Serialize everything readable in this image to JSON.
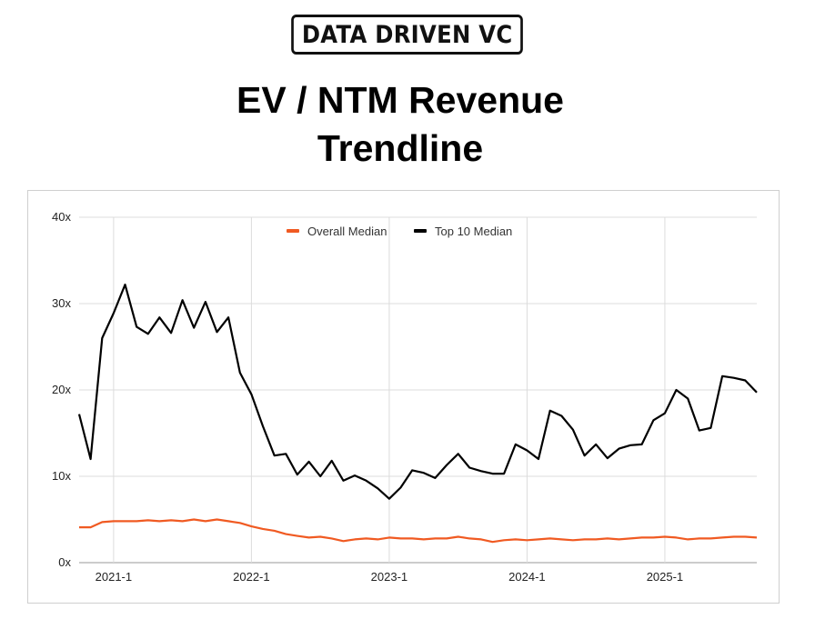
{
  "logo": {
    "text": "DATA DRIVEN VC"
  },
  "title": {
    "line1": "EV / NTM Revenue",
    "line2": "Trendline"
  },
  "colors": {
    "overall": "#f05a22",
    "top10": "#000000",
    "grid": "#dcdcdc"
  },
  "chart_data": {
    "type": "line",
    "title": "EV / NTM Revenue Trendline",
    "xlabel": "",
    "ylabel": "",
    "ylim": [
      0,
      40
    ],
    "y_ticks": [
      "0x",
      "10x",
      "20x",
      "30x",
      "40x"
    ],
    "x_ticks": [
      "2021-1",
      "2022-1",
      "2023-1",
      "2024-1",
      "2025-1"
    ],
    "grid": true,
    "legend_position": "top-center",
    "x": [
      2020.75,
      2020.833,
      2020.917,
      2021.0,
      2021.083,
      2021.167,
      2021.25,
      2021.333,
      2021.417,
      2021.5,
      2021.583,
      2021.667,
      2021.75,
      2021.833,
      2021.917,
      2022.0,
      2022.083,
      2022.167,
      2022.25,
      2022.333,
      2022.417,
      2022.5,
      2022.583,
      2022.667,
      2022.75,
      2022.833,
      2022.917,
      2023.0,
      2023.083,
      2023.167,
      2023.25,
      2023.333,
      2023.417,
      2023.5,
      2023.583,
      2023.667,
      2023.75,
      2023.833,
      2023.917,
      2024.0,
      2024.083,
      2024.167,
      2024.25,
      2024.333,
      2024.417,
      2024.5,
      2024.583,
      2024.667,
      2024.75,
      2024.833,
      2024.917,
      2025.0,
      2025.083,
      2025.167,
      2025.25,
      2025.333,
      2025.417,
      2025.5,
      2025.583,
      2025.667
    ],
    "series": [
      {
        "name": "Overall Median",
        "color": "#f05a22",
        "values": [
          4.1,
          4.1,
          4.7,
          4.8,
          4.8,
          4.8,
          4.9,
          4.8,
          4.9,
          4.8,
          5.0,
          4.8,
          5.0,
          4.8,
          4.6,
          4.2,
          3.9,
          3.7,
          3.3,
          3.1,
          2.9,
          3.0,
          2.8,
          2.5,
          2.7,
          2.8,
          2.7,
          2.9,
          2.8,
          2.8,
          2.7,
          2.8,
          2.8,
          3.0,
          2.8,
          2.7,
          2.4,
          2.6,
          2.7,
          2.6,
          2.7,
          2.8,
          2.7,
          2.6,
          2.7,
          2.7,
          2.8,
          2.7,
          2.8,
          2.9,
          2.9,
          3.0,
          2.9,
          2.7,
          2.8,
          2.8,
          2.9,
          3.0,
          3.0,
          2.9
        ]
      },
      {
        "name": "Top 10 Median",
        "color": "#000000",
        "values": [
          17.2,
          12.0,
          26.0,
          28.9,
          32.2,
          27.3,
          26.5,
          28.4,
          26.6,
          30.4,
          27.2,
          30.2,
          26.7,
          28.4,
          22.0,
          19.5,
          15.8,
          12.4,
          12.6,
          10.2,
          11.7,
          10.0,
          11.8,
          9.5,
          10.1,
          9.5,
          8.6,
          7.4,
          8.7,
          10.7,
          10.4,
          9.8,
          11.3,
          12.6,
          11.0,
          10.6,
          10.3,
          10.3,
          13.7,
          13.0,
          12.0,
          17.6,
          17.0,
          15.4,
          12.4,
          13.7,
          12.1,
          13.2,
          13.6,
          13.7,
          16.5,
          17.3,
          20.0,
          19.0,
          15.3,
          15.6,
          21.6,
          21.4,
          21.1,
          19.7
        ]
      }
    ]
  }
}
